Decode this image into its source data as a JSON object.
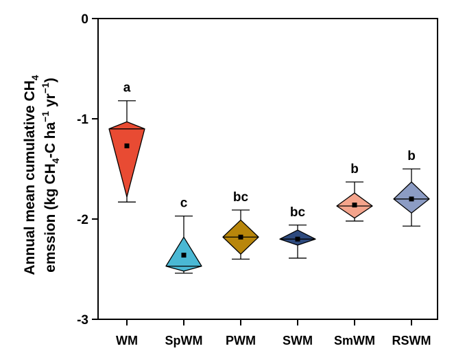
{
  "chart_data": {
    "type": "box",
    "xlabel": "",
    "ylabel_line1": "Annual mean cumulative CH",
    "ylabel_line1_sub": "4",
    "ylabel_line2_a": "emssion (kg CH",
    "ylabel_line2_sub": "4",
    "ylabel_line2_b": "-C ha",
    "ylabel_line2_sup1": "−1",
    "ylabel_line2_c": " yr",
    "ylabel_line2_sup2": "−1",
    "ylabel_line2_d": ")",
    "ylim": [
      -3,
      0
    ],
    "yticks": [
      0,
      -1,
      -2,
      -3
    ],
    "ytick_labels": [
      "0",
      "-1",
      "-2",
      "-3"
    ],
    "categories": [
      "WM",
      "SpWM",
      "PWM",
      "SWM",
      "SmWM",
      "RSWM"
    ],
    "groups": [
      {
        "name": "WM",
        "color": "#e84b33",
        "whisker_top": -0.82,
        "whisker_bottom": -1.83,
        "box_top": -1.03,
        "box_bottom": -1.78,
        "median": -1.1,
        "mean": -1.27,
        "letter": "a"
      },
      {
        "name": "SpWM",
        "color": "#4ab8d4",
        "whisker_top": -1.97,
        "whisker_bottom": -2.54,
        "box_top": -2.18,
        "box_bottom": -2.52,
        "median": -2.47,
        "mean": -2.36,
        "letter": "c"
      },
      {
        "name": "PWM",
        "color": "#b8860b",
        "whisker_top": -1.91,
        "whisker_bottom": -2.4,
        "box_top": -2.01,
        "box_bottom": -2.35,
        "median": -2.18,
        "mean": -2.18,
        "letter": "bc"
      },
      {
        "name": "SWM",
        "color": "#2e4a7e",
        "whisker_top": -2.06,
        "whisker_bottom": -2.39,
        "box_top": -2.11,
        "box_bottom": -2.26,
        "median": -2.2,
        "mean": -2.2,
        "letter": "bc"
      },
      {
        "name": "SmWM",
        "color": "#f4a48c",
        "whisker_top": -1.63,
        "whisker_bottom": -2.02,
        "box_top": -1.74,
        "box_bottom": -1.99,
        "median": -1.87,
        "mean": -1.86,
        "letter": "b"
      },
      {
        "name": "RSWM",
        "color": "#8c9cc4",
        "whisker_top": -1.5,
        "whisker_bottom": -2.07,
        "box_top": -1.63,
        "box_bottom": -1.94,
        "median": -1.8,
        "mean": -1.8,
        "letter": "b"
      }
    ]
  }
}
